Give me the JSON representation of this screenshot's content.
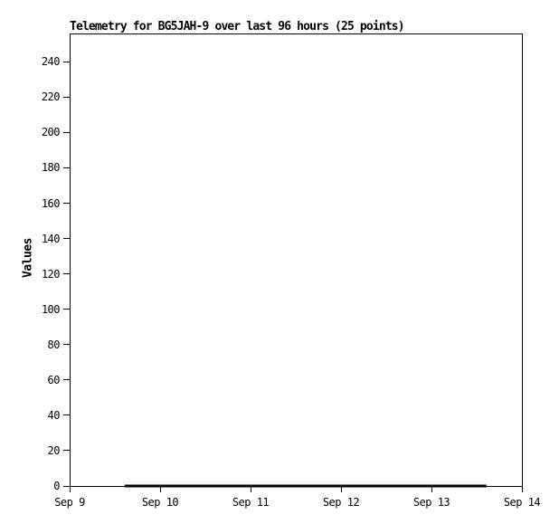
{
  "chart_data": {
    "type": "line",
    "title": "Telemetry for BG5JAH-9 over last 96 hours (25 points)",
    "ylabel": "Values",
    "xlabel": "",
    "ylim": [
      0,
      256
    ],
    "ytick_values": [
      0,
      20,
      40,
      60,
      80,
      100,
      120,
      140,
      160,
      180,
      200,
      220,
      240
    ],
    "xtick_labels": [
      "Sep 9",
      "Sep 10",
      "Sep 11",
      "Sep 12",
      "Sep 13",
      "Sep 14"
    ],
    "xlim_hours": [
      0,
      120
    ],
    "grid": false,
    "legend": false,
    "colors": {
      "background": "#ffffff",
      "axis": "#000000",
      "text": "#000000",
      "series": "#000000"
    },
    "series": [
      {
        "name": "Values",
        "color": "#000000",
        "line_width": 3,
        "x_hours": [
          14.6,
          18.6,
          22.6,
          26.6,
          30.6,
          34.6,
          38.6,
          42.6,
          46.6,
          50.6,
          54.6,
          58.6,
          62.6,
          66.6,
          70.6,
          74.6,
          78.6,
          82.6,
          86.6,
          90.6,
          94.6,
          98.6,
          102.6,
          106.6,
          110.6
        ],
        "values": [
          0,
          0,
          0,
          0,
          0,
          0,
          0,
          0,
          0,
          0,
          0,
          0,
          0,
          0,
          0,
          0,
          0,
          0,
          0,
          0,
          0,
          0,
          0,
          0,
          0
        ]
      }
    ]
  }
}
